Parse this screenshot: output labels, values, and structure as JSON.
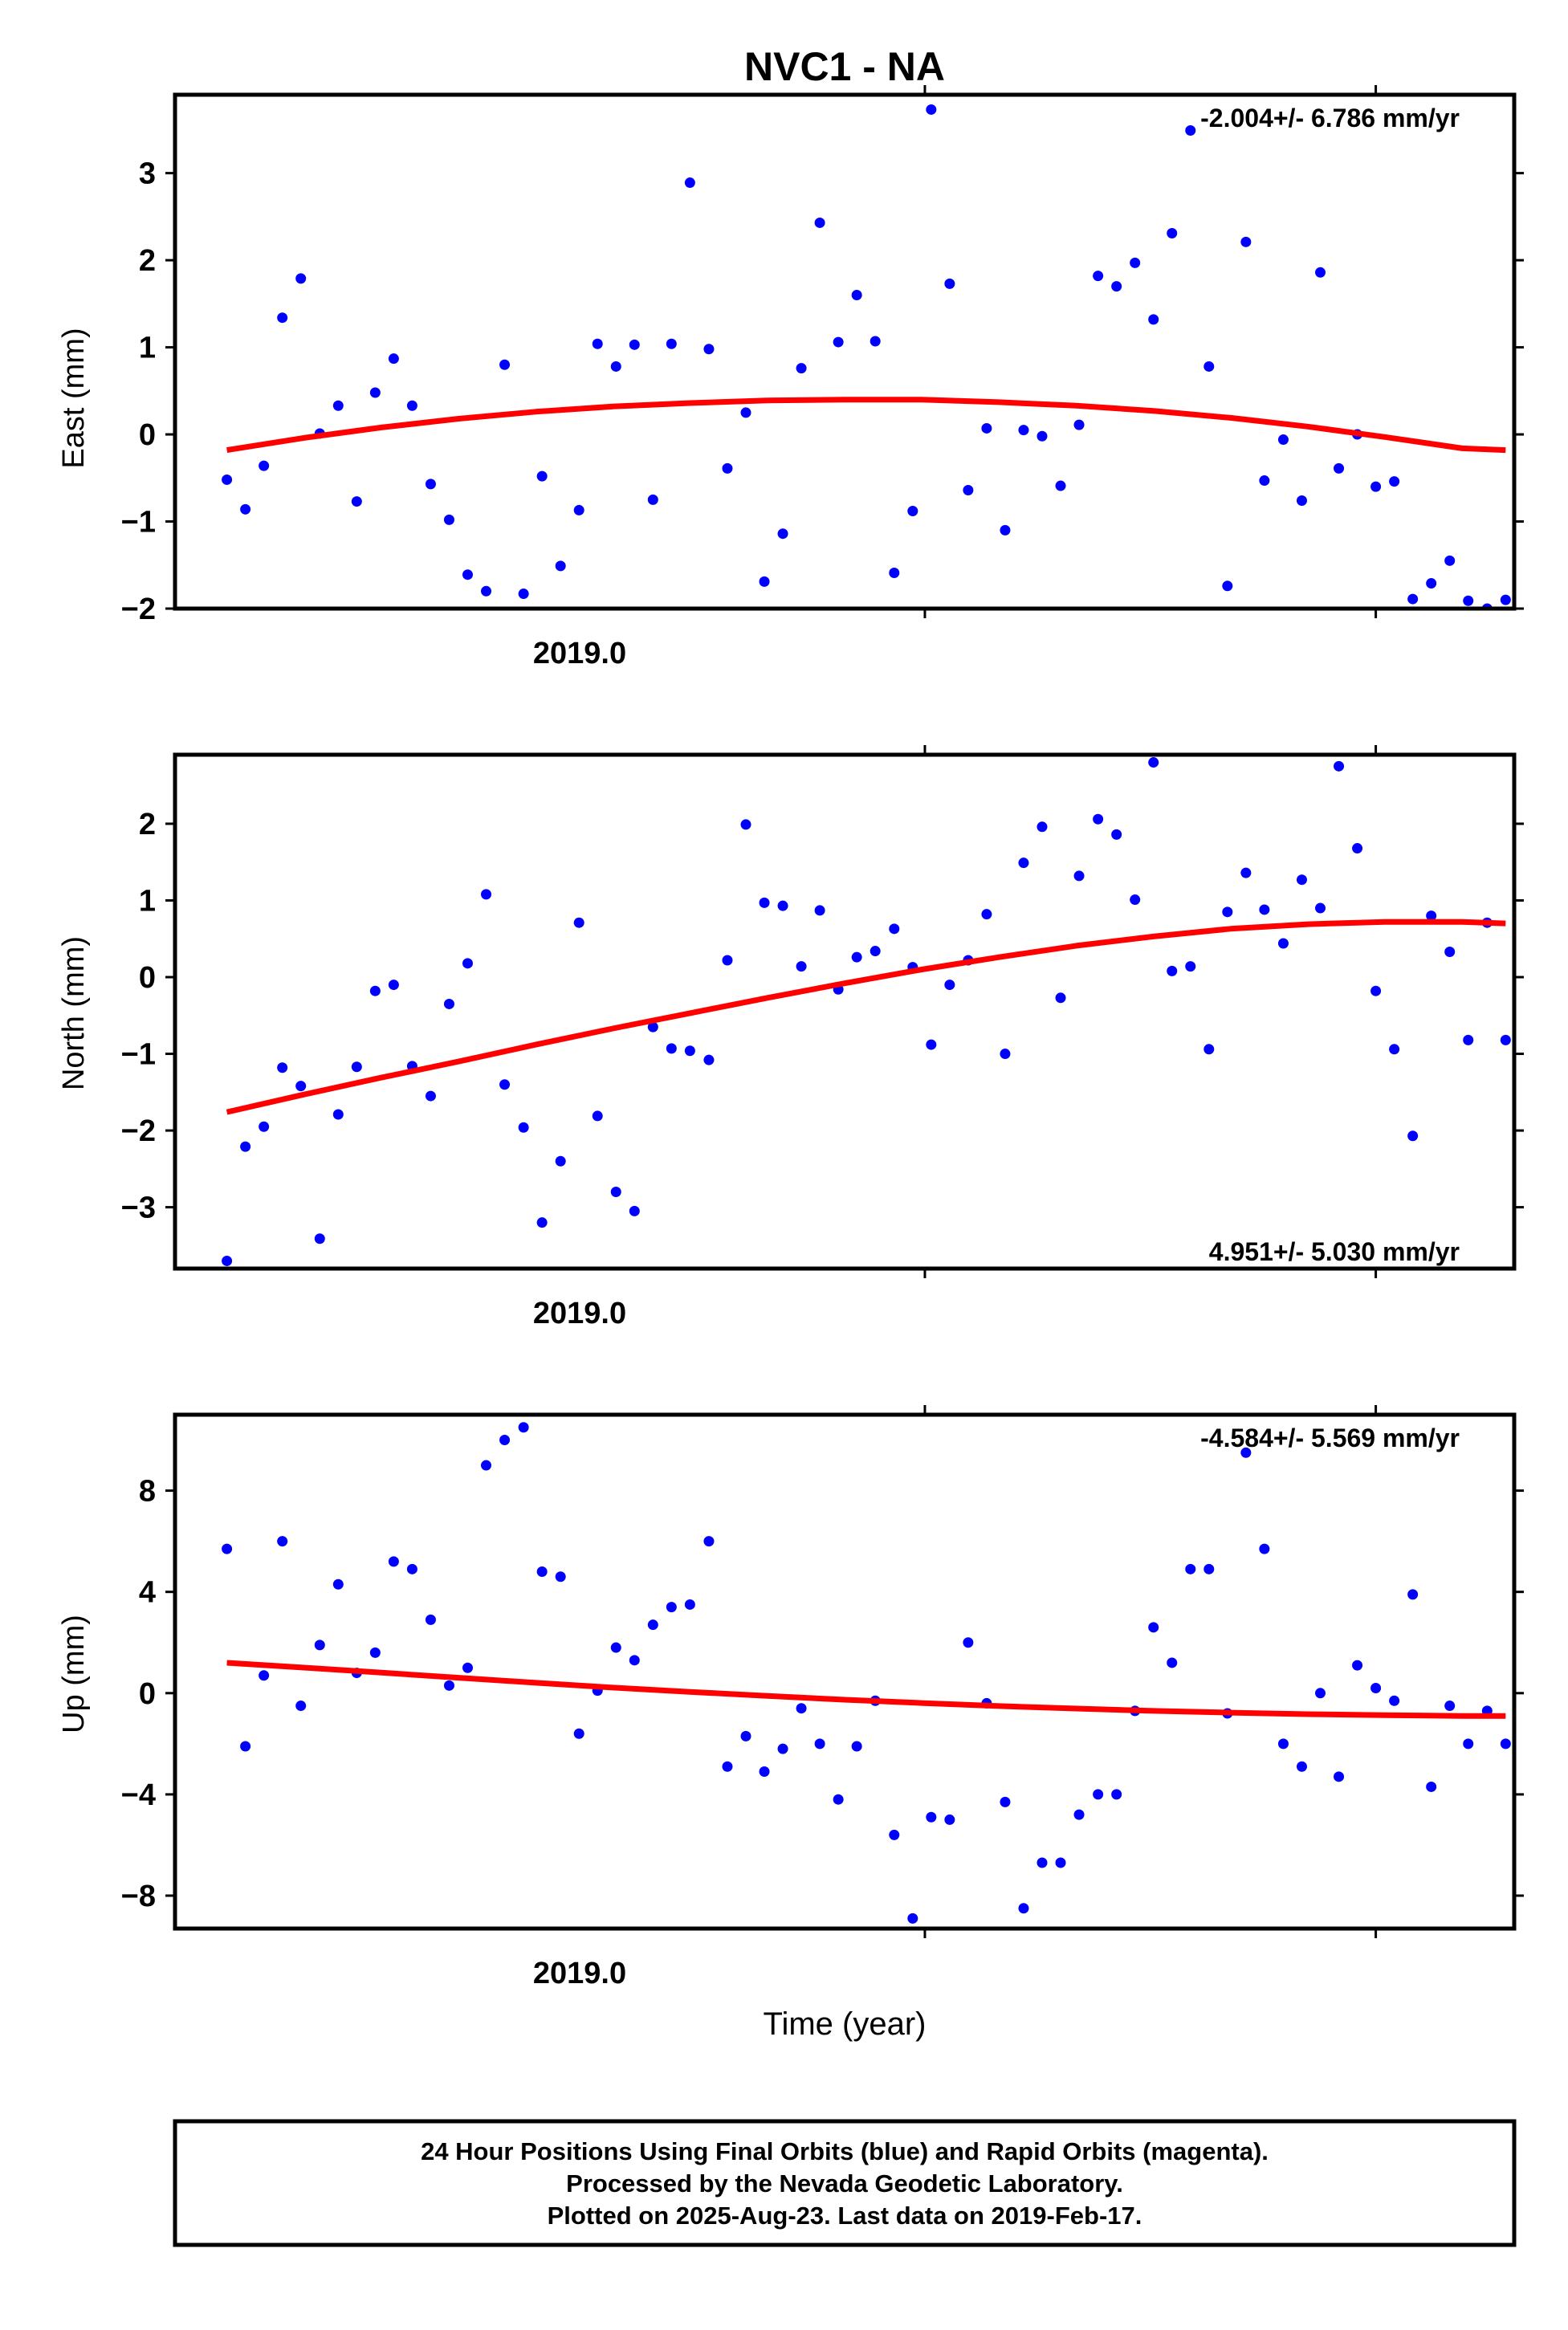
{
  "title": "NVC1 - NA",
  "xlabel": "Time (year)",
  "colors": {
    "points": "#0000ff",
    "fit": "#ff0000",
    "axes": "#000000"
  },
  "footer": {
    "line1": "24 Hour Positions Using Final Orbits (blue) and Rapid Orbits (magenta).",
    "line2": "Processed by the Nevada Geodetic Laboratory.",
    "line3": "Plotted on 2025-Aug-23. Last data on 2019-Feb-17."
  },
  "chart_data": [
    {
      "type": "scatter",
      "ylabel": "East (mm)",
      "rate_label": "-2.004+/- 6.786 mm/yr",
      "rate_position": "top-right",
      "x_tick_label": "2019.0",
      "xlim": [
        2018.8337,
        2019.1307
      ],
      "ylim": [
        -2.0,
        3.9
      ],
      "yticks": [
        -2,
        -1,
        0,
        1,
        2,
        3
      ],
      "x": [
        2018.8452,
        2018.8493,
        2018.8534,
        2018.8575,
        2018.8616,
        2018.8658,
        2018.8699,
        2018.874,
        2018.8781,
        2018.8822,
        2018.8863,
        2018.8904,
        2018.8945,
        2018.8986,
        2018.9027,
        2018.9068,
        2018.911,
        2018.9151,
        2018.9192,
        2018.9233,
        2018.9274,
        2018.9315,
        2018.9356,
        2018.9397,
        2018.9438,
        2018.9479,
        2018.9521,
        2018.9562,
        2018.9603,
        2018.9644,
        2018.9685,
        2018.9726,
        2018.9767,
        2018.9808,
        2018.9849,
        2018.989,
        2018.9932,
        2018.9973,
        2019.0014,
        2019.0055,
        2019.0096,
        2019.0137,
        2019.0178,
        2019.0219,
        2019.026,
        2019.0301,
        2019.0342,
        2019.0384,
        2019.0425,
        2019.0466,
        2019.0507,
        2019.0548,
        2019.0589,
        2019.063,
        2019.0671,
        2019.0712,
        2019.0753,
        2019.0795,
        2019.0836,
        2019.0877,
        2019.0918,
        2019.0959,
        2019.1,
        2019.1041,
        2019.1082,
        2019.1123,
        2019.1164,
        2019.1205,
        2019.1247,
        2019.1288
      ],
      "y": [
        -0.52,
        -0.86,
        -0.36,
        1.34,
        1.79,
        0.01,
        0.33,
        -0.77,
        0.48,
        0.87,
        0.33,
        -0.57,
        -0.98,
        -1.61,
        -1.8,
        0.8,
        -1.83,
        -0.48,
        -1.51,
        -0.87,
        1.04,
        0.78,
        1.03,
        -0.75,
        1.04,
        2.89,
        0.98,
        -0.39,
        0.25,
        -1.69,
        -1.14,
        0.76,
        2.43,
        1.06,
        1.6,
        1.07,
        -1.59,
        -0.88,
        3.73,
        1.73,
        -0.64,
        0.07,
        -1.1,
        0.05,
        -0.02,
        -0.59,
        0.11,
        1.82,
        1.7,
        1.97,
        1.32,
        2.31,
        3.49,
        0.78,
        -1.74,
        2.21,
        -0.53,
        -0.06,
        -0.76,
        1.86,
        -0.39,
        0.0,
        -0.6,
        -0.54,
        -1.89,
        -1.71,
        -1.45,
        -1.91,
        -2.0,
        -1.9
      ],
      "fit": {
        "x": [
          2018.8452,
          2018.8623,
          2018.8795,
          2018.8966,
          2018.9137,
          2018.9308,
          2018.9479,
          2018.9651,
          2018.9822,
          2018.9993,
          2019.0164,
          2019.0336,
          2019.0507,
          2019.0678,
          2019.0849,
          2019.102,
          2019.1192,
          2019.1288
        ],
        "y": [
          -0.18,
          -0.04,
          0.08,
          0.18,
          0.26,
          0.32,
          0.36,
          0.39,
          0.4,
          0.4,
          0.37,
          0.33,
          0.27,
          0.19,
          0.09,
          -0.03,
          -0.16,
          -0.18
        ]
      }
    },
    {
      "type": "scatter",
      "ylabel": "North (mm)",
      "rate_label": "4.951+/- 5.030 mm/yr",
      "rate_position": "bottom-right",
      "x_tick_label": "2019.0",
      "xlim": [
        2018.8337,
        2019.1307
      ],
      "ylim": [
        -3.8,
        2.9
      ],
      "yticks": [
        -3,
        -2,
        -1,
        0,
        1,
        2
      ],
      "x": [
        2018.8452,
        2018.8493,
        2018.8534,
        2018.8575,
        2018.8616,
        2018.8658,
        2018.8699,
        2018.874,
        2018.8781,
        2018.8822,
        2018.8863,
        2018.8904,
        2018.8945,
        2018.8986,
        2018.9027,
        2018.9068,
        2018.911,
        2018.9151,
        2018.9192,
        2018.9233,
        2018.9274,
        2018.9315,
        2018.9356,
        2018.9397,
        2018.9438,
        2018.9479,
        2018.9521,
        2018.9562,
        2018.9603,
        2018.9644,
        2018.9685,
        2018.9726,
        2018.9767,
        2018.9808,
        2018.9849,
        2018.989,
        2018.9932,
        2018.9973,
        2019.0014,
        2019.0055,
        2019.0096,
        2019.0137,
        2019.0178,
        2019.0219,
        2019.026,
        2019.0301,
        2019.0342,
        2019.0384,
        2019.0425,
        2019.0466,
        2019.0507,
        2019.0548,
        2019.0589,
        2019.063,
        2019.0671,
        2019.0712,
        2019.0753,
        2019.0795,
        2019.0836,
        2019.0877,
        2019.0918,
        2019.0959,
        2019.1,
        2019.1041,
        2019.1082,
        2019.1123,
        2019.1164,
        2019.1205,
        2019.1247,
        2019.1288
      ],
      "y": [
        -3.7,
        -2.21,
        -1.95,
        -1.18,
        -1.42,
        -3.41,
        -1.79,
        -1.17,
        -0.18,
        -0.1,
        -1.16,
        -1.55,
        -0.35,
        0.18,
        1.08,
        -1.4,
        -1.96,
        -3.2,
        -2.4,
        0.71,
        -1.81,
        -2.8,
        -3.05,
        -0.65,
        -0.93,
        -0.96,
        -1.08,
        0.22,
        1.99,
        0.97,
        0.93,
        0.14,
        0.87,
        -0.16,
        0.26,
        0.34,
        0.63,
        0.13,
        -0.88,
        -0.1,
        0.22,
        0.82,
        -1.0,
        1.49,
        1.96,
        -0.27,
        1.32,
        2.06,
        1.86,
        1.01,
        2.8,
        0.08,
        0.14,
        -0.94,
        0.85,
        1.36,
        0.88,
        0.44,
        1.27,
        0.9,
        2.75,
        1.68,
        -0.18,
        -0.94,
        -2.07,
        0.8,
        0.33,
        -0.82,
        0.71,
        -0.82
      ],
      "fit": {
        "x": [
          2018.8452,
          2018.8623,
          2018.8795,
          2018.8966,
          2018.9137,
          2018.9308,
          2018.9479,
          2018.9651,
          2018.9822,
          2018.9993,
          2019.0164,
          2019.0336,
          2019.0507,
          2019.0678,
          2019.0849,
          2019.102,
          2019.1192,
          2019.1288
        ],
        "y": [
          -1.76,
          -1.53,
          -1.31,
          -1.1,
          -0.88,
          -0.67,
          -0.47,
          -0.27,
          -0.08,
          0.1,
          0.26,
          0.41,
          0.53,
          0.63,
          0.69,
          0.72,
          0.72,
          0.7
        ]
      }
    },
    {
      "type": "scatter",
      "ylabel": "Up (mm)",
      "rate_label": "-4.584+/- 5.569 mm/yr",
      "rate_position": "top-right",
      "x_tick_label": "2019.0",
      "xlim": [
        2018.8337,
        2019.1307
      ],
      "ylim": [
        -9.3,
        11.0
      ],
      "yticks": [
        -8,
        -4,
        0,
        4,
        8
      ],
      "x": [
        2018.8452,
        2018.8493,
        2018.8534,
        2018.8575,
        2018.8616,
        2018.8658,
        2018.8699,
        2018.874,
        2018.8781,
        2018.8822,
        2018.8863,
        2018.8904,
        2018.8945,
        2018.8986,
        2018.9027,
        2018.9068,
        2018.911,
        2018.9151,
        2018.9192,
        2018.9233,
        2018.9274,
        2018.9315,
        2018.9356,
        2018.9397,
        2018.9438,
        2018.9479,
        2018.9521,
        2018.9562,
        2018.9603,
        2018.9644,
        2018.9685,
        2018.9726,
        2018.9767,
        2018.9808,
        2018.9849,
        2018.989,
        2018.9932,
        2018.9973,
        2019.0014,
        2019.0055,
        2019.0096,
        2019.0137,
        2019.0178,
        2019.0219,
        2019.026,
        2019.0301,
        2019.0342,
        2019.0384,
        2019.0425,
        2019.0466,
        2019.0507,
        2019.0548,
        2019.0589,
        2019.063,
        2019.0671,
        2019.0712,
        2019.0753,
        2019.0795,
        2019.0836,
        2019.0877,
        2019.0918,
        2019.0959,
        2019.1,
        2019.1041,
        2019.1082,
        2019.1123,
        2019.1164,
        2019.1205,
        2019.1247,
        2019.1288
      ],
      "y": [
        5.7,
        -2.1,
        0.7,
        6.0,
        -0.5,
        1.9,
        4.3,
        0.8,
        1.6,
        5.2,
        4.9,
        2.9,
        0.3,
        1.0,
        9.0,
        10.0,
        10.5,
        4.8,
        4.6,
        -1.6,
        0.1,
        1.8,
        1.3,
        2.7,
        3.4,
        3.5,
        6.0,
        -2.9,
        -1.7,
        -3.1,
        -2.2,
        -0.6,
        -2.0,
        -4.2,
        -2.1,
        -0.3,
        -5.6,
        -8.9,
        -4.9,
        -5.0,
        2.0,
        -0.4,
        -4.3,
        -8.5,
        -6.7,
        -6.7,
        -4.8,
        -4.0,
        -4.0,
        -0.7,
        2.6,
        1.2,
        4.9,
        4.9,
        -0.8,
        9.5,
        5.7,
        -2.0,
        -2.9,
        0.0,
        -3.3,
        1.1,
        0.2,
        -0.3,
        3.9,
        -3.7,
        -0.5,
        -2.0,
        -0.7,
        -2.0
      ],
      "fit": {
        "x": [
          2018.8452,
          2018.8623,
          2018.8795,
          2018.8966,
          2018.9137,
          2018.9308,
          2018.9479,
          2018.9651,
          2018.9822,
          2018.9993,
          2019.0164,
          2019.0336,
          2019.0507,
          2019.0678,
          2019.0849,
          2019.102,
          2019.1192,
          2019.1288
        ],
        "y": [
          1.2,
          1.01,
          0.81,
          0.61,
          0.41,
          0.22,
          0.05,
          -0.11,
          -0.26,
          -0.39,
          -0.51,
          -0.61,
          -0.7,
          -0.77,
          -0.83,
          -0.87,
          -0.9,
          -0.9
        ]
      }
    }
  ]
}
